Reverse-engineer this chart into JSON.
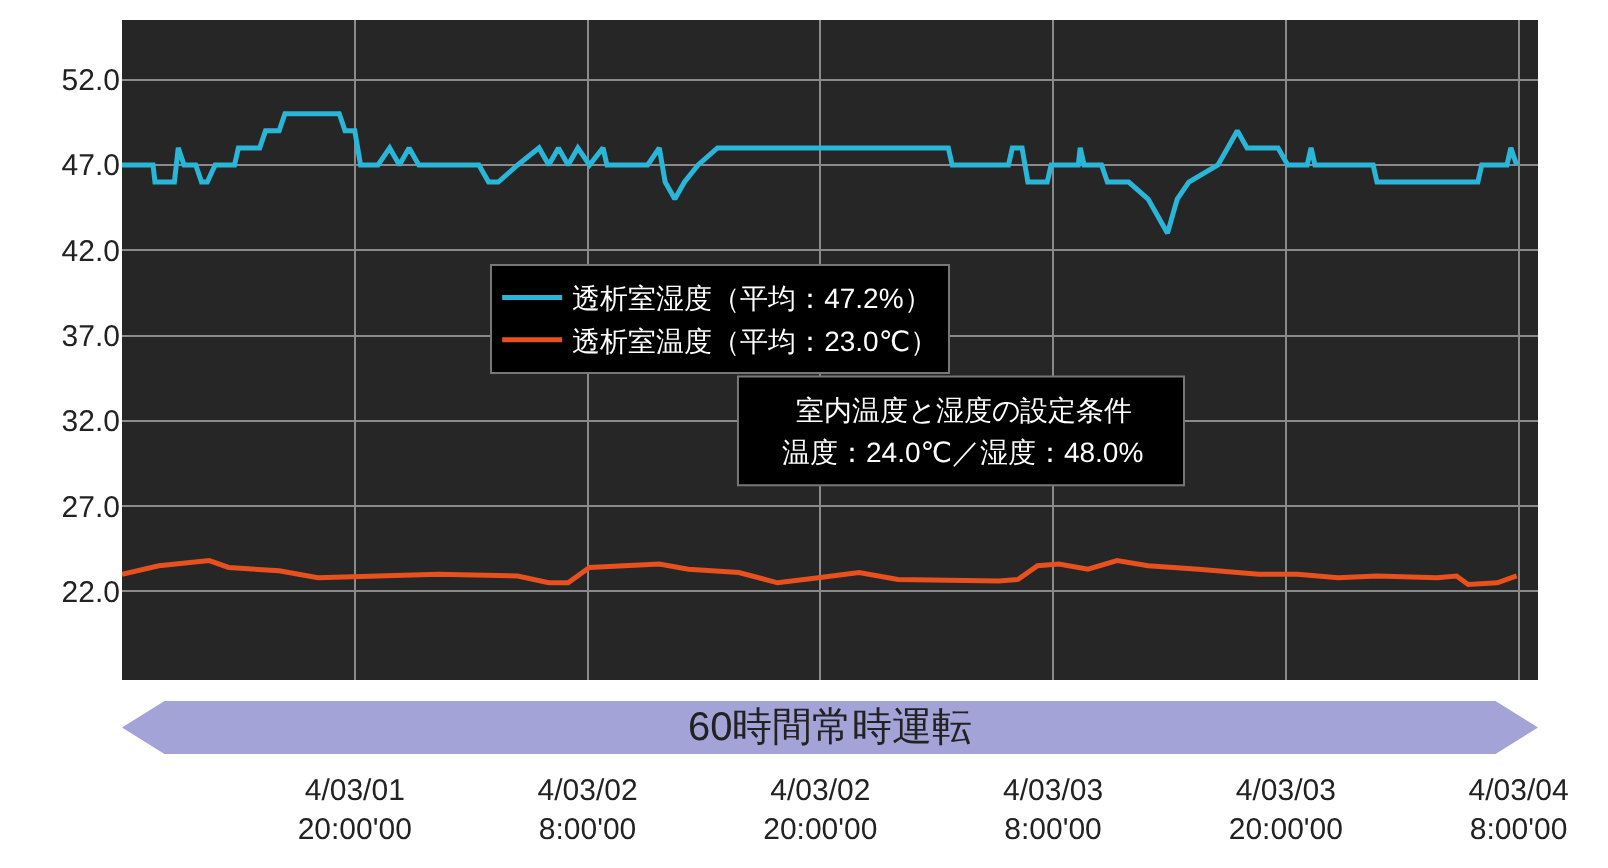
{
  "chart_data": {
    "type": "line",
    "xlim": [
      "--03-01T08:00",
      "--03-04T09:00"
    ],
    "xticks": [
      {
        "value": "--03-01T20:00",
        "label": "4/03/01\n20:00'00"
      },
      {
        "value": "--03-02T08:00",
        "label": "4/03/02\n8:00'00"
      },
      {
        "value": "--03-02T20:00",
        "label": "4/03/02\n20:00'00"
      },
      {
        "value": "--03-03T08:00",
        "label": "4/03/03\n8:00'00"
      },
      {
        "value": "--03-03T20:00",
        "label": "4/03/03\n20:00'00"
      },
      {
        "value": "--03-04T08:00",
        "label": "4/03/04\n8:00'00"
      }
    ],
    "ylim": [
      16.8,
      55.5
    ],
    "yticks": [
      {
        "value": 22,
        "label": "22.0"
      },
      {
        "value": 27,
        "label": "27.0"
      },
      {
        "value": 32,
        "label": "32.0"
      },
      {
        "value": 37,
        "label": "37.0"
      },
      {
        "value": 42,
        "label": "42.0"
      },
      {
        "value": 47,
        "label": "47.0"
      },
      {
        "value": 52,
        "label": "52.0"
      }
    ],
    "grid": true,
    "legend": "center",
    "marker": "none",
    "line_style": "solid",
    "series": [
      {
        "name": "透析室湿度（平均：47.2%）",
        "color": "#29b6d8",
        "x": [
          "--03-01T08:00",
          "--03-01T09:36",
          "--03-01T09:42",
          "--03-01T10:42",
          "--03-01T10:54",
          "--03-01T11:12",
          "--03-01T11:48",
          "--03-01T12:06",
          "--03-01T12:24",
          "--03-01T12:48",
          "--03-01T13:48",
          "--03-01T14:00",
          "--03-01T15:06",
          "--03-01T15:24",
          "--03-01T16:06",
          "--03-01T16:24",
          "--03-01T19:12",
          "--03-01T19:30",
          "--03-01T20:00",
          "--03-01T20:18",
          "--03-01T21:12",
          "--03-01T21:48",
          "--03-01T22:18",
          "--03-01T22:48",
          "--03-01T23:18",
          "--03-02T02:24",
          "--03-02T02:54",
          "--03-02T03:24",
          "--03-02T04:24",
          "--03-02T05:30",
          "--03-02T06:00",
          "--03-02T06:30",
          "--03-02T07:00",
          "--03-02T07:30",
          "--03-02T08:06",
          "--03-02T08:48",
          "--03-02T09:00",
          "--03-02T11:06",
          "--03-02T11:42",
          "--03-02T12:00",
          "--03-02T12:30",
          "--03-02T13:00",
          "--03-02T13:42",
          "--03-02T14:42",
          "--03-02T16:18",
          "--03-02T18:54",
          "--03-03T02:36",
          "--03-03T02:48",
          "--03-03T05:42",
          "--03-03T05:54",
          "--03-03T06:24",
          "--03-03T06:42",
          "--03-03T07:42",
          "--03-03T07:54",
          "--03-03T09:18",
          "--03-03T09:24",
          "--03-03T09:36",
          "--03-03T10:30",
          "--03-03T10:48",
          "--03-03T11:54",
          "--03-03T12:54",
          "--03-03T13:54",
          "--03-03T14:24",
          "--03-03T15:00",
          "--03-03T16:30",
          "--03-03T17:00",
          "--03-03T17:30",
          "--03-03T18:00",
          "--03-03T19:36",
          "--03-03T20:06",
          "--03-03T21:06",
          "--03-03T21:18",
          "--03-03T21:30",
          "--03-04T00:30",
          "--03-04T00:42",
          "--03-04T01:18",
          "--03-04T05:54",
          "--03-04T06:06",
          "--03-04T07:24",
          "--03-04T07:36",
          "--03-04T07:54"
        ],
        "values": [
          47,
          47,
          46,
          46,
          48,
          47,
          47,
          46,
          46,
          47,
          47,
          48,
          48,
          49,
          49,
          50,
          50,
          49,
          49,
          47,
          47,
          48,
          47,
          48,
          47,
          47,
          46,
          46,
          47,
          48,
          47,
          48,
          47,
          48,
          47,
          48,
          47,
          47,
          48,
          46,
          45,
          46,
          47,
          48,
          48,
          48,
          48,
          47,
          47,
          48,
          48,
          46,
          46,
          47,
          47,
          48,
          47,
          47,
          46,
          46,
          45,
          43,
          45,
          46,
          47,
          48,
          49,
          48,
          48,
          47,
          47,
          48,
          47,
          47,
          46,
          46,
          46,
          47,
          47,
          48,
          47
        ]
      },
      {
        "name": "透析室温度（平均：23.0℃）",
        "color": "#e8501e",
        "x": [
          "--03-01T08:00",
          "--03-01T09:54",
          "--03-01T12:30",
          "--03-01T13:30",
          "--03-01T16:06",
          "--03-01T18:06",
          "--03-02T00:18",
          "--03-02T04:24",
          "--03-02T06:00",
          "--03-02T07:00",
          "--03-02T08:06",
          "--03-02T11:42",
          "--03-02T13:12",
          "--03-02T15:48",
          "--03-02T17:48",
          "--03-02T19:54",
          "--03-02T22:00",
          "--03-03T00:00",
          "--03-03T05:12",
          "--03-03T06:12",
          "--03-03T07:12",
          "--03-03T08:18",
          "--03-03T09:48",
          "--03-03T11:18",
          "--03-03T12:54",
          "--03-03T15:30",
          "--03-03T18:36",
          "--03-03T20:36",
          "--03-03T22:42",
          "--03-04T00:42",
          "--03-04T03:48",
          "--03-04T04:48",
          "--03-04T05:24",
          "--03-04T06:54",
          "--03-04T07:54"
        ],
        "values": [
          23.0,
          23.5,
          23.8,
          23.4,
          23.2,
          22.8,
          23.0,
          22.9,
          22.5,
          22.5,
          23.4,
          23.6,
          23.3,
          23.1,
          22.5,
          22.8,
          23.1,
          22.7,
          22.6,
          22.7,
          23.5,
          23.6,
          23.3,
          23.8,
          23.5,
          23.3,
          23.0,
          23.0,
          22.8,
          22.9,
          22.8,
          22.9,
          22.4,
          22.5,
          22.9
        ]
      }
    ],
    "annotations": [
      "室内温度と湿度の設定条件",
      "温度：24.0℃／湿度：48.0%",
      "60時間常時運転"
    ]
  }
}
